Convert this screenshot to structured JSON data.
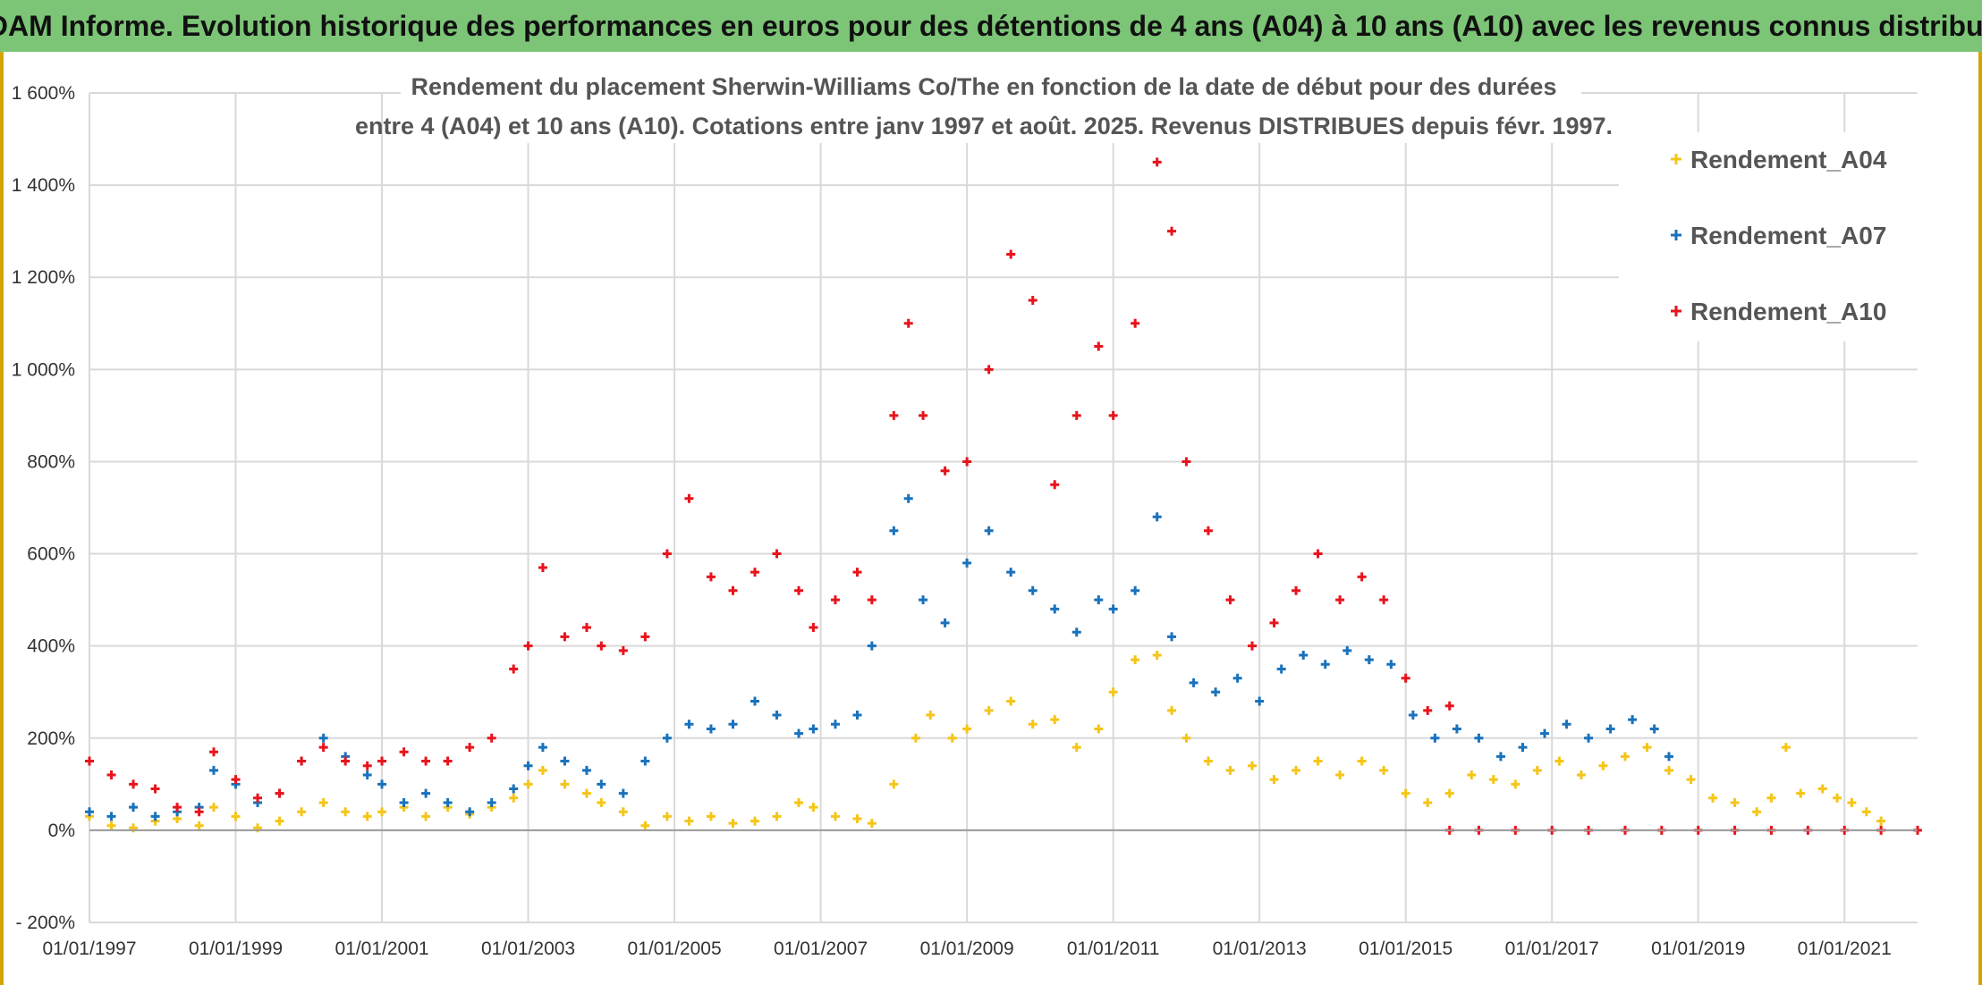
{
  "banner": {
    "title": "ADAM Informe. Evolution historique des performances en euros pour des détentions de 4 ans (A04) à 10 ans (A10) avec les revenus connus distribués"
  },
  "chart_data": {
    "type": "scatter",
    "title_line1": "Rendement du placement Sherwin-Williams Co/The en fonction de la date de début pour des durées",
    "title_line2": "entre 4 (A04) et 10 ans (A10). Cotations entre janv 1997 et août. 2025. Revenus DISTRIBUES depuis févr. 1997.",
    "xlabel": "",
    "ylabel": "",
    "x_ticks": [
      "01/01/1997",
      "01/01/1999",
      "01/01/2001",
      "01/01/2003",
      "01/01/2005",
      "01/01/2007",
      "01/01/2009",
      "01/01/2011",
      "01/01/2013",
      "01/01/2015",
      "01/01/2017",
      "01/01/2019",
      "01/01/2021"
    ],
    "y_ticks": [
      "- 200%",
      "0%",
      "200%",
      "400%",
      "600%",
      "800%",
      "1 000%",
      "1 200%",
      "1 400%",
      "1 600%"
    ],
    "xlim": [
      1997.0,
      2022.0
    ],
    "ylim": [
      -200,
      1600
    ],
    "grid": true,
    "legend_position": "top-right",
    "marker": "+",
    "series": [
      {
        "name": "Rendement_A04",
        "color": "#f5c518",
        "points": [
          [
            1997.0,
            30
          ],
          [
            1997.3,
            10
          ],
          [
            1997.6,
            5
          ],
          [
            1997.9,
            20
          ],
          [
            1998.2,
            25
          ],
          [
            1998.5,
            10
          ],
          [
            1998.7,
            50
          ],
          [
            1999.0,
            30
          ],
          [
            1999.3,
            5
          ],
          [
            1999.6,
            20
          ],
          [
            1999.9,
            40
          ],
          [
            2000.2,
            60
          ],
          [
            2000.5,
            40
          ],
          [
            2000.8,
            30
          ],
          [
            2001.0,
            40
          ],
          [
            2001.3,
            50
          ],
          [
            2001.6,
            30
          ],
          [
            2001.9,
            50
          ],
          [
            2002.2,
            35
          ],
          [
            2002.5,
            50
          ],
          [
            2002.8,
            70
          ],
          [
            2003.0,
            100
          ],
          [
            2003.2,
            130
          ],
          [
            2003.5,
            100
          ],
          [
            2003.8,
            80
          ],
          [
            2004.0,
            60
          ],
          [
            2004.3,
            40
          ],
          [
            2004.6,
            10
          ],
          [
            2004.9,
            30
          ],
          [
            2005.2,
            20
          ],
          [
            2005.5,
            30
          ],
          [
            2005.8,
            15
          ],
          [
            2006.1,
            20
          ],
          [
            2006.4,
            30
          ],
          [
            2006.7,
            60
          ],
          [
            2006.9,
            50
          ],
          [
            2007.2,
            30
          ],
          [
            2007.5,
            25
          ],
          [
            2007.7,
            15
          ],
          [
            2008.0,
            100
          ],
          [
            2008.3,
            200
          ],
          [
            2008.5,
            250
          ],
          [
            2008.8,
            200
          ],
          [
            2009.0,
            220
          ],
          [
            2009.3,
            260
          ],
          [
            2009.6,
            280
          ],
          [
            2009.9,
            230
          ],
          [
            2010.2,
            240
          ],
          [
            2010.5,
            180
          ],
          [
            2010.8,
            220
          ],
          [
            2011.0,
            300
          ],
          [
            2011.3,
            370
          ],
          [
            2011.6,
            380
          ],
          [
            2011.8,
            260
          ],
          [
            2012.0,
            200
          ],
          [
            2012.3,
            150
          ],
          [
            2012.6,
            130
          ],
          [
            2012.9,
            140
          ],
          [
            2013.2,
            110
          ],
          [
            2013.5,
            130
          ],
          [
            2013.8,
            150
          ],
          [
            2014.1,
            120
          ],
          [
            2014.4,
            150
          ],
          [
            2014.7,
            130
          ],
          [
            2015.0,
            80
          ],
          [
            2015.3,
            60
          ],
          [
            2015.6,
            80
          ],
          [
            2015.9,
            120
          ],
          [
            2016.2,
            110
          ],
          [
            2016.5,
            100
          ],
          [
            2016.8,
            130
          ],
          [
            2017.1,
            150
          ],
          [
            2017.4,
            120
          ],
          [
            2017.7,
            140
          ],
          [
            2018.0,
            160
          ],
          [
            2018.3,
            180
          ],
          [
            2018.6,
            130
          ],
          [
            2018.9,
            110
          ],
          [
            2019.2,
            70
          ],
          [
            2019.5,
            60
          ],
          [
            2019.8,
            40
          ],
          [
            2020.0,
            70
          ],
          [
            2020.2,
            180
          ],
          [
            2020.4,
            80
          ],
          [
            2020.7,
            90
          ],
          [
            2020.9,
            70
          ],
          [
            2021.1,
            60
          ],
          [
            2021.3,
            40
          ],
          [
            2021.5,
            20
          ]
        ]
      },
      {
        "name": "Rendement_A07",
        "color": "#1a72bb",
        "points": [
          [
            1997.0,
            40
          ],
          [
            1997.3,
            30
          ],
          [
            1997.6,
            50
          ],
          [
            1997.9,
            30
          ],
          [
            1998.2,
            40
          ],
          [
            1998.5,
            50
          ],
          [
            1998.7,
            130
          ],
          [
            1999.0,
            100
          ],
          [
            1999.3,
            60
          ],
          [
            1999.6,
            80
          ],
          [
            1999.9,
            150
          ],
          [
            2000.2,
            200
          ],
          [
            2000.5,
            160
          ],
          [
            2000.8,
            120
          ],
          [
            2001.0,
            100
          ],
          [
            2001.3,
            60
          ],
          [
            2001.6,
            80
          ],
          [
            2001.9,
            60
          ],
          [
            2002.2,
            40
          ],
          [
            2002.5,
            60
          ],
          [
            2002.8,
            90
          ],
          [
            2003.0,
            140
          ],
          [
            2003.2,
            180
          ],
          [
            2003.5,
            150
          ],
          [
            2003.8,
            130
          ],
          [
            2004.0,
            100
          ],
          [
            2004.3,
            80
          ],
          [
            2004.6,
            150
          ],
          [
            2004.9,
            200
          ],
          [
            2005.2,
            230
          ],
          [
            2005.5,
            220
          ],
          [
            2005.8,
            230
          ],
          [
            2006.1,
            280
          ],
          [
            2006.4,
            250
          ],
          [
            2006.7,
            210
          ],
          [
            2006.9,
            220
          ],
          [
            2007.2,
            230
          ],
          [
            2007.5,
            250
          ],
          [
            2007.7,
            400
          ],
          [
            2008.0,
            650
          ],
          [
            2008.2,
            720
          ],
          [
            2008.4,
            500
          ],
          [
            2008.7,
            450
          ],
          [
            2009.0,
            580
          ],
          [
            2009.3,
            650
          ],
          [
            2009.6,
            560
          ],
          [
            2009.9,
            520
          ],
          [
            2010.2,
            480
          ],
          [
            2010.5,
            430
          ],
          [
            2010.8,
            500
          ],
          [
            2011.0,
            480
          ],
          [
            2011.3,
            520
          ],
          [
            2011.6,
            680
          ],
          [
            2011.8,
            420
          ],
          [
            2012.1,
            320
          ],
          [
            2012.4,
            300
          ],
          [
            2012.7,
            330
          ],
          [
            2013.0,
            280
          ],
          [
            2013.3,
            350
          ],
          [
            2013.6,
            380
          ],
          [
            2013.9,
            360
          ],
          [
            2014.2,
            390
          ],
          [
            2014.5,
            370
          ],
          [
            2014.8,
            360
          ],
          [
            2015.1,
            250
          ],
          [
            2015.4,
            200
          ],
          [
            2015.7,
            220
          ],
          [
            2016.0,
            200
          ],
          [
            2016.3,
            160
          ],
          [
            2016.6,
            180
          ],
          [
            2016.9,
            210
          ],
          [
            2017.2,
            230
          ],
          [
            2017.5,
            200
          ],
          [
            2017.8,
            220
          ],
          [
            2018.1,
            240
          ],
          [
            2018.4,
            220
          ],
          [
            2018.6,
            160
          ]
        ]
      },
      {
        "name": "Rendement_A10",
        "color": "#e8141c",
        "points": [
          [
            1997.0,
            150
          ],
          [
            1997.3,
            120
          ],
          [
            1997.6,
            100
          ],
          [
            1997.9,
            90
          ],
          [
            1998.2,
            50
          ],
          [
            1998.5,
            40
          ],
          [
            1998.7,
            170
          ],
          [
            1999.0,
            110
          ],
          [
            1999.3,
            70
          ],
          [
            1999.6,
            80
          ],
          [
            1999.9,
            150
          ],
          [
            2000.2,
            180
          ],
          [
            2000.5,
            150
          ],
          [
            2000.8,
            140
          ],
          [
            2001.0,
            150
          ],
          [
            2001.3,
            170
          ],
          [
            2001.6,
            150
          ],
          [
            2001.9,
            150
          ],
          [
            2002.2,
            180
          ],
          [
            2002.5,
            200
          ],
          [
            2002.8,
            350
          ],
          [
            2003.0,
            400
          ],
          [
            2003.2,
            570
          ],
          [
            2003.5,
            420
          ],
          [
            2003.8,
            440
          ],
          [
            2004.0,
            400
          ],
          [
            2004.3,
            390
          ],
          [
            2004.6,
            420
          ],
          [
            2004.9,
            600
          ],
          [
            2005.2,
            720
          ],
          [
            2005.5,
            550
          ],
          [
            2005.8,
            520
          ],
          [
            2006.1,
            560
          ],
          [
            2006.4,
            600
          ],
          [
            2006.7,
            520
          ],
          [
            2006.9,
            440
          ],
          [
            2007.2,
            500
          ],
          [
            2007.5,
            560
          ],
          [
            2007.7,
            500
          ],
          [
            2008.0,
            900
          ],
          [
            2008.2,
            1100
          ],
          [
            2008.4,
            900
          ],
          [
            2008.7,
            780
          ],
          [
            2009.0,
            800
          ],
          [
            2009.3,
            1000
          ],
          [
            2009.6,
            1250
          ],
          [
            2009.9,
            1150
          ],
          [
            2010.2,
            750
          ],
          [
            2010.5,
            900
          ],
          [
            2010.8,
            1050
          ],
          [
            2011.0,
            900
          ],
          [
            2011.3,
            1100
          ],
          [
            2011.6,
            1450
          ],
          [
            2011.8,
            1300
          ],
          [
            2012.0,
            800
          ],
          [
            2012.3,
            650
          ],
          [
            2012.6,
            500
          ],
          [
            2012.9,
            400
          ],
          [
            2013.2,
            450
          ],
          [
            2013.5,
            520
          ],
          [
            2013.8,
            600
          ],
          [
            2014.1,
            500
          ],
          [
            2014.4,
            550
          ],
          [
            2014.7,
            500
          ],
          [
            2015.0,
            330
          ],
          [
            2015.3,
            260
          ],
          [
            2015.6,
            270
          ]
        ]
      },
      {
        "name": "",
        "color": "#e8141c",
        "points": [
          [
            2015.6,
            0
          ],
          [
            2016.0,
            0
          ],
          [
            2016.5,
            0
          ],
          [
            2017.0,
            0
          ],
          [
            2017.5,
            0
          ],
          [
            2018.0,
            0
          ],
          [
            2018.5,
            0
          ],
          [
            2019.0,
            0
          ],
          [
            2019.5,
            0
          ],
          [
            2020.0,
            0
          ],
          [
            2020.5,
            0
          ],
          [
            2021.0,
            0
          ],
          [
            2021.5,
            0
          ],
          [
            2022.0,
            0
          ]
        ]
      }
    ]
  }
}
